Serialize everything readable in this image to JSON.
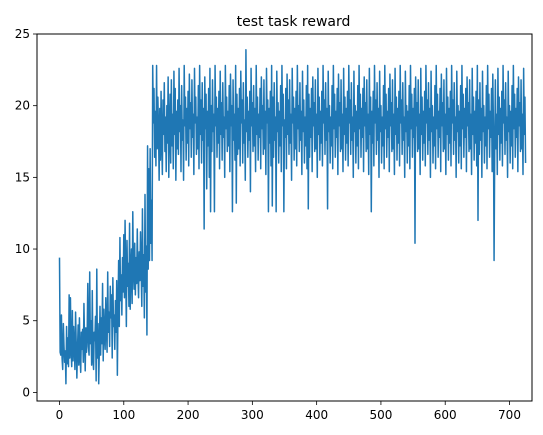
{
  "chart_data": {
    "type": "line",
    "title": "test task reward",
    "xlabel": "",
    "ylabel": "",
    "xlim": [
      -35,
      735
    ],
    "ylim": [
      -0.6,
      25.0
    ],
    "x_ticks": [
      0,
      100,
      200,
      300,
      400,
      500,
      600,
      700
    ],
    "y_ticks": [
      0,
      5,
      10,
      15,
      20,
      25
    ],
    "grid": false,
    "legend": "none",
    "series": [
      {
        "color": "#1f77b4",
        "x_start": 0,
        "x_step": 1,
        "values": [
          9.4,
          2.8,
          2.6,
          5.4,
          2.4,
          1.6,
          4.8,
          3.2,
          2.1,
          2.9,
          0.6,
          4.6,
          2.0,
          3.8,
          1.8,
          6.8,
          2.4,
          6.6,
          3.1,
          1.8,
          5.7,
          2.2,
          4.6,
          3.2,
          1.6,
          5.6,
          3.4,
          1.0,
          3.0,
          4.7,
          1.9,
          5.2,
          2.6,
          1.4,
          4.2,
          3.0,
          4.4,
          2.1,
          6.2,
          3.6,
          1.5,
          4.5,
          2.8,
          3.9,
          7.6,
          3.2,
          2.6,
          8.4,
          3.4,
          5.0,
          1.9,
          7.1,
          2.4,
          1.6,
          4.2,
          3.6,
          5.3,
          0.8,
          8.6,
          2.4,
          4.8,
          0.6,
          3.0,
          6.0,
          2.6,
          5.2,
          3.4,
          7.6,
          2.2,
          5.8,
          4.0,
          3.0,
          6.6,
          4.6,
          2.8,
          8.4,
          4.2,
          5.6,
          3.2,
          7.4,
          5.2,
          6.8,
          2.4,
          8.0,
          4.6,
          5.4,
          3.0,
          6.4,
          4.2,
          7.8,
          1.2,
          5.8,
          9.2,
          4.6,
          10.8,
          6.4,
          8.2,
          5.4,
          9.4,
          7.0,
          11.0,
          6.6,
          12.0,
          8.2,
          4.6,
          10.6,
          7.4,
          9.0,
          6.0,
          11.8,
          5.8,
          8.6,
          10.0,
          6.2,
          12.6,
          8.4,
          7.2,
          10.4,
          6.8,
          9.4,
          7.6,
          11.4,
          8.2,
          6.6,
          9.8,
          7.8,
          11.2,
          8.8,
          6.0,
          12.8,
          7.4,
          9.6,
          5.2,
          13.8,
          7.0,
          10.2,
          4.0,
          17.2,
          8.6,
          15.6,
          9.2,
          17.0,
          10.4,
          13.4,
          9.2,
          22.8,
          18.8,
          21.2,
          16.4,
          19.6,
          15.8,
          22.8,
          17.0,
          20.6,
          18.4,
          14.8,
          19.8,
          16.2,
          21.0,
          17.6,
          15.2,
          20.4,
          18.0,
          21.6,
          16.8,
          19.2,
          15.4,
          20.0,
          17.4,
          22.0,
          15.0,
          18.6,
          20.8,
          16.0,
          21.8,
          17.2,
          19.4,
          15.6,
          22.4,
          18.0,
          21.2,
          14.8,
          19.6,
          17.0,
          20.4,
          16.6,
          22.6,
          18.2,
          20.0,
          15.4,
          21.4,
          17.6,
          19.0,
          14.8,
          22.8,
          18.6,
          20.6,
          16.2,
          19.8,
          17.4,
          21.0,
          15.8,
          22.2,
          18.4,
          20.2,
          16.4,
          21.8,
          17.8,
          19.4,
          15.2,
          22.6,
          18.8,
          20.6,
          16.6,
          19.2,
          17.0,
          21.4,
          15.6,
          22.8,
          18.0,
          20.4,
          16.0,
          21.6,
          17.6,
          19.8,
          11.4,
          22.0,
          18.4,
          20.8,
          14.2,
          19.6,
          17.2,
          21.2,
          15.0,
          22.6,
          12.6,
          20.0,
          16.8,
          21.8,
          18.2,
          19.4,
          12.6,
          22.8,
          18.6,
          20.6,
          16.4,
          19.8,
          17.4,
          21.0,
          15.6,
          22.4,
          18.0,
          20.2,
          16.2,
          21.6,
          17.8,
          19.2,
          15.0,
          22.8,
          18.4,
          20.6,
          16.8,
          19.6,
          17.2,
          21.4,
          15.4,
          22.2,
          18.6,
          20.0,
          12.6,
          21.8,
          17.6,
          19.4,
          16.2,
          22.8,
          13.2,
          20.8,
          16.6,
          19.8,
          17.0,
          21.2,
          15.8,
          22.4,
          18.8,
          20.4,
          16.0,
          21.6,
          17.4,
          19.0,
          14.8,
          23.9,
          18.2,
          20.6,
          16.4,
          19.6,
          17.6,
          21.0,
          14.0,
          22.6,
          18.6,
          20.2,
          16.8,
          21.4,
          17.2,
          19.8,
          15.4,
          22.8,
          18.0,
          20.6,
          16.2,
          19.4,
          17.8,
          21.2,
          15.6,
          22.0,
          18.4,
          20.0,
          16.6,
          21.8,
          17.0,
          19.6,
          15.2,
          22.6,
          18.8,
          20.4,
          12.6,
          19.8,
          17.4,
          21.0,
          15.8,
          22.8,
          13.0,
          20.6,
          16.4,
          21.6,
          17.6,
          19.2,
          12.6,
          22.4,
          18.2,
          20.2,
          16.0,
          19.6,
          17.2,
          21.4,
          15.4,
          22.8,
          18.6,
          20.8,
          12.6,
          19.0,
          17.8,
          21.2,
          15.6,
          22.2,
          18.0,
          20.4,
          16.6,
          21.8,
          17.4,
          19.4,
          14.8,
          22.6,
          18.8,
          20.6,
          16.2,
          19.8,
          17.0,
          21.0,
          15.8,
          22.8,
          18.4,
          20.0,
          16.8,
          21.6,
          17.6,
          19.6,
          15.2,
          22.4,
          18.2,
          20.4,
          16.0,
          19.2,
          17.2,
          21.4,
          15.6,
          22.8,
          12.8,
          20.8,
          16.4,
          19.8,
          17.8,
          21.2,
          15.4,
          22.0,
          18.6,
          20.2,
          16.8,
          21.8,
          17.0,
          19.4,
          15.0,
          22.6,
          18.0,
          20.6,
          16.2,
          19.6,
          17.4,
          21.0,
          15.8,
          22.8,
          18.8,
          20.4,
          16.6,
          21.6,
          17.6,
          19.8,
          12.8,
          22.4,
          18.2,
          20.0,
          16.0,
          19.2,
          17.2,
          21.4,
          15.6,
          22.8,
          18.4,
          20.8,
          16.4,
          19.6,
          17.8,
          21.2,
          15.2,
          22.2,
          18.6,
          20.2,
          16.8,
          21.8,
          17.0,
          19.4,
          15.4,
          22.6,
          18.0,
          20.6,
          16.2,
          19.8,
          17.4,
          21.0,
          15.8,
          22.8,
          18.8,
          20.4,
          16.6,
          21.6,
          17.6,
          19.2,
          15.0,
          22.4,
          18.2,
          20.0,
          16.0,
          19.6,
          17.2,
          21.4,
          15.6,
          22.8,
          18.4,
          20.8,
          16.4,
          19.8,
          17.8,
          21.2,
          15.4,
          22.0,
          18.6,
          20.2,
          16.8,
          21.8,
          17.0,
          19.4,
          15.2,
          22.6,
          18.0,
          20.6,
          12.6,
          19.6,
          17.4,
          21.0,
          15.8,
          22.8,
          18.8,
          20.4,
          16.6,
          21.6,
          17.6,
          19.8,
          15.0,
          22.4,
          18.2,
          20.0,
          16.0,
          19.2,
          17.2,
          21.4,
          15.6,
          22.8,
          18.4,
          20.8,
          16.4,
          19.6,
          17.8,
          21.2,
          15.4,
          22.2,
          18.6,
          20.2,
          16.8,
          21.8,
          17.0,
          19.4,
          15.2,
          22.6,
          18.0,
          20.6,
          16.2,
          19.8,
          17.4,
          21.0,
          15.8,
          22.8,
          18.8,
          20.4,
          16.6,
          21.6,
          17.6,
          19.2,
          15.0,
          22.4,
          18.2,
          20.0,
          16.0,
          19.6,
          17.2,
          21.4,
          15.6,
          22.8,
          18.4,
          20.8,
          16.4,
          19.8,
          17.8,
          21.2,
          10.4,
          22.0,
          18.6,
          20.2,
          16.8,
          21.8,
          17.0,
          19.4,
          15.2,
          22.6,
          18.0,
          20.6,
          16.2,
          19.6,
          17.4,
          21.0,
          15.8,
          22.8,
          18.8,
          20.4,
          16.6,
          21.6,
          17.6,
          19.8,
          15.0,
          22.4,
          18.2,
          20.0,
          16.0,
          19.2,
          17.2,
          21.4,
          15.6,
          22.8,
          18.4,
          20.8,
          16.4,
          19.6,
          17.8,
          21.2,
          15.4,
          22.2,
          18.6,
          20.2,
          16.8,
          21.8,
          17.0,
          19.4,
          15.2,
          22.6,
          18.0,
          20.6,
          16.2,
          19.8,
          17.4,
          21.0,
          15.8,
          22.8,
          18.8,
          20.4,
          16.6,
          21.6,
          17.6,
          19.2,
          15.0,
          22.4,
          18.2,
          20.0,
          16.0,
          19.6,
          17.2,
          21.4,
          15.6,
          22.8,
          18.4,
          20.8,
          16.4,
          19.8,
          17.8,
          21.2,
          15.4,
          22.0,
          18.6,
          20.2,
          16.8,
          21.8,
          17.0,
          19.4,
          15.2,
          22.6,
          18.0,
          20.6,
          16.2,
          19.6,
          17.4,
          21.0,
          15.8,
          22.8,
          12.0,
          20.4,
          16.6,
          21.6,
          17.6,
          19.8,
          15.0,
          22.4,
          18.2,
          20.0,
          16.0,
          19.2,
          17.2,
          21.4,
          15.6,
          22.8,
          18.4,
          20.8,
          16.4,
          19.6,
          17.8,
          21.2,
          15.4,
          22.2,
          18.6,
          9.2,
          16.8,
          21.8,
          17.0,
          19.4,
          15.2,
          22.6,
          18.0,
          20.6,
          16.2,
          19.8,
          17.4,
          21.0,
          15.8,
          22.8,
          18.8,
          20.4,
          16.6,
          21.6,
          17.6,
          19.2,
          15.0,
          22.4,
          18.2,
          20.0,
          16.0,
          19.6,
          17.2,
          21.4,
          15.6,
          22.8,
          18.4,
          20.8,
          16.4,
          19.8,
          17.8,
          21.2,
          15.4,
          22.0,
          18.6,
          20.2,
          16.8,
          21.8,
          17.0,
          19.4,
          15.2,
          22.6,
          18.0,
          20.6,
          16.0
        ]
      }
    ]
  }
}
